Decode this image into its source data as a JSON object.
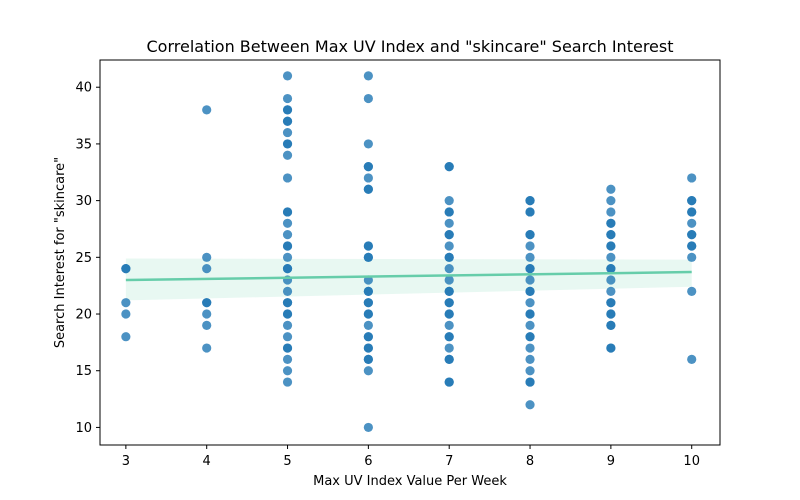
{
  "chart_data": {
    "type": "scatter",
    "title": "Correlation Between Max UV Index and \"skincare\" Search Interest",
    "xlabel": "Max UV Index Value Per Week",
    "ylabel": "Search Interest for \"skincare\"",
    "xlim": [
      2.68,
      10.35
    ],
    "ylim": [
      8.45,
      42.4
    ],
    "xticks": [
      3,
      4,
      5,
      6,
      7,
      8,
      9,
      10
    ],
    "yticks": [
      10,
      15,
      20,
      25,
      30,
      35,
      40
    ],
    "grid": false,
    "points": [
      {
        "x": 3,
        "y": 24
      },
      {
        "x": 3,
        "y": 24
      },
      {
        "x": 3,
        "y": 21
      },
      {
        "x": 3,
        "y": 20
      },
      {
        "x": 3,
        "y": 18
      },
      {
        "x": 4,
        "y": 38
      },
      {
        "x": 4,
        "y": 25
      },
      {
        "x": 4,
        "y": 24
      },
      {
        "x": 4,
        "y": 21
      },
      {
        "x": 4,
        "y": 21
      },
      {
        "x": 4,
        "y": 20
      },
      {
        "x": 4,
        "y": 19
      },
      {
        "x": 4,
        "y": 17
      },
      {
        "x": 5,
        "y": 41
      },
      {
        "x": 5,
        "y": 39
      },
      {
        "x": 5,
        "y": 38
      },
      {
        "x": 5,
        "y": 38
      },
      {
        "x": 5,
        "y": 37
      },
      {
        "x": 5,
        "y": 37
      },
      {
        "x": 5,
        "y": 36
      },
      {
        "x": 5,
        "y": 35
      },
      {
        "x": 5,
        "y": 35
      },
      {
        "x": 5,
        "y": 34
      },
      {
        "x": 5,
        "y": 32
      },
      {
        "x": 5,
        "y": 29
      },
      {
        "x": 5,
        "y": 29
      },
      {
        "x": 5,
        "y": 28
      },
      {
        "x": 5,
        "y": 27
      },
      {
        "x": 5,
        "y": 26
      },
      {
        "x": 5,
        "y": 26
      },
      {
        "x": 5,
        "y": 25
      },
      {
        "x": 5,
        "y": 24
      },
      {
        "x": 5,
        "y": 24
      },
      {
        "x": 5,
        "y": 23
      },
      {
        "x": 5,
        "y": 22
      },
      {
        "x": 5,
        "y": 21
      },
      {
        "x": 5,
        "y": 21
      },
      {
        "x": 5,
        "y": 20
      },
      {
        "x": 5,
        "y": 20
      },
      {
        "x": 5,
        "y": 19
      },
      {
        "x": 5,
        "y": 18
      },
      {
        "x": 5,
        "y": 17
      },
      {
        "x": 5,
        "y": 17
      },
      {
        "x": 5,
        "y": 16
      },
      {
        "x": 5,
        "y": 15
      },
      {
        "x": 5,
        "y": 14
      },
      {
        "x": 6,
        "y": 41
      },
      {
        "x": 6,
        "y": 39
      },
      {
        "x": 6,
        "y": 35
      },
      {
        "x": 6,
        "y": 33
      },
      {
        "x": 6,
        "y": 33
      },
      {
        "x": 6,
        "y": 32
      },
      {
        "x": 6,
        "y": 31
      },
      {
        "x": 6,
        "y": 31
      },
      {
        "x": 6,
        "y": 26
      },
      {
        "x": 6,
        "y": 26
      },
      {
        "x": 6,
        "y": 25
      },
      {
        "x": 6,
        "y": 25
      },
      {
        "x": 6,
        "y": 23
      },
      {
        "x": 6,
        "y": 22
      },
      {
        "x": 6,
        "y": 22
      },
      {
        "x": 6,
        "y": 21
      },
      {
        "x": 6,
        "y": 21
      },
      {
        "x": 6,
        "y": 20
      },
      {
        "x": 6,
        "y": 20
      },
      {
        "x": 6,
        "y": 19
      },
      {
        "x": 6,
        "y": 18
      },
      {
        "x": 6,
        "y": 18
      },
      {
        "x": 6,
        "y": 17
      },
      {
        "x": 6,
        "y": 17
      },
      {
        "x": 6,
        "y": 16
      },
      {
        "x": 6,
        "y": 16
      },
      {
        "x": 6,
        "y": 15
      },
      {
        "x": 6,
        "y": 10
      },
      {
        "x": 7,
        "y": 33
      },
      {
        "x": 7,
        "y": 33
      },
      {
        "x": 7,
        "y": 30
      },
      {
        "x": 7,
        "y": 29
      },
      {
        "x": 7,
        "y": 29
      },
      {
        "x": 7,
        "y": 28
      },
      {
        "x": 7,
        "y": 27
      },
      {
        "x": 7,
        "y": 27
      },
      {
        "x": 7,
        "y": 26
      },
      {
        "x": 7,
        "y": 25
      },
      {
        "x": 7,
        "y": 25
      },
      {
        "x": 7,
        "y": 24
      },
      {
        "x": 7,
        "y": 23
      },
      {
        "x": 7,
        "y": 22
      },
      {
        "x": 7,
        "y": 22
      },
      {
        "x": 7,
        "y": 21
      },
      {
        "x": 7,
        "y": 21
      },
      {
        "x": 7,
        "y": 20
      },
      {
        "x": 7,
        "y": 20
      },
      {
        "x": 7,
        "y": 19
      },
      {
        "x": 7,
        "y": 18
      },
      {
        "x": 7,
        "y": 18
      },
      {
        "x": 7,
        "y": 17
      },
      {
        "x": 7,
        "y": 16
      },
      {
        "x": 7,
        "y": 16
      },
      {
        "x": 7,
        "y": 14
      },
      {
        "x": 7,
        "y": 14
      },
      {
        "x": 8,
        "y": 30
      },
      {
        "x": 8,
        "y": 30
      },
      {
        "x": 8,
        "y": 29
      },
      {
        "x": 8,
        "y": 29
      },
      {
        "x": 8,
        "y": 27
      },
      {
        "x": 8,
        "y": 27
      },
      {
        "x": 8,
        "y": 26
      },
      {
        "x": 8,
        "y": 25
      },
      {
        "x": 8,
        "y": 24
      },
      {
        "x": 8,
        "y": 24
      },
      {
        "x": 8,
        "y": 23
      },
      {
        "x": 8,
        "y": 22
      },
      {
        "x": 8,
        "y": 22
      },
      {
        "x": 8,
        "y": 21
      },
      {
        "x": 8,
        "y": 20
      },
      {
        "x": 8,
        "y": 20
      },
      {
        "x": 8,
        "y": 19
      },
      {
        "x": 8,
        "y": 18
      },
      {
        "x": 8,
        "y": 18
      },
      {
        "x": 8,
        "y": 17
      },
      {
        "x": 8,
        "y": 16
      },
      {
        "x": 8,
        "y": 15
      },
      {
        "x": 8,
        "y": 14
      },
      {
        "x": 8,
        "y": 14
      },
      {
        "x": 8,
        "y": 12
      },
      {
        "x": 9,
        "y": 31
      },
      {
        "x": 9,
        "y": 30
      },
      {
        "x": 9,
        "y": 29
      },
      {
        "x": 9,
        "y": 28
      },
      {
        "x": 9,
        "y": 28
      },
      {
        "x": 9,
        "y": 27
      },
      {
        "x": 9,
        "y": 27
      },
      {
        "x": 9,
        "y": 26
      },
      {
        "x": 9,
        "y": 26
      },
      {
        "x": 9,
        "y": 25
      },
      {
        "x": 9,
        "y": 24
      },
      {
        "x": 9,
        "y": 24
      },
      {
        "x": 9,
        "y": 23
      },
      {
        "x": 9,
        "y": 22
      },
      {
        "x": 9,
        "y": 21
      },
      {
        "x": 9,
        "y": 21
      },
      {
        "x": 9,
        "y": 20
      },
      {
        "x": 9,
        "y": 20
      },
      {
        "x": 9,
        "y": 19
      },
      {
        "x": 9,
        "y": 19
      },
      {
        "x": 9,
        "y": 17
      },
      {
        "x": 9,
        "y": 17
      },
      {
        "x": 10,
        "y": 32
      },
      {
        "x": 10,
        "y": 30
      },
      {
        "x": 10,
        "y": 30
      },
      {
        "x": 10,
        "y": 29
      },
      {
        "x": 10,
        "y": 29
      },
      {
        "x": 10,
        "y": 28
      },
      {
        "x": 10,
        "y": 27
      },
      {
        "x": 10,
        "y": 27
      },
      {
        "x": 10,
        "y": 26
      },
      {
        "x": 10,
        "y": 26
      },
      {
        "x": 10,
        "y": 25
      },
      {
        "x": 10,
        "y": 22
      },
      {
        "x": 10,
        "y": 16
      }
    ],
    "regression": {
      "x": [
        3,
        10
      ],
      "y": [
        23.0,
        23.7
      ],
      "ci_upper": [
        24.9,
        24.8
      ],
      "ci_lower": [
        21.2,
        22.4
      ]
    },
    "colors": {
      "points": "#1f77b4",
      "regression_line": "#66cdaa",
      "ci_band": "#66cdaa"
    }
  }
}
